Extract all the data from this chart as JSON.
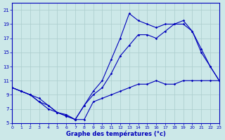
{
  "xlabel": "Graphe des températures (°c)",
  "background_color": "#cce8e8",
  "grid_color": "#aacccc",
  "line_color": "#0000bb",
  "xlim": [
    0,
    23
  ],
  "ylim": [
    5,
    22
  ],
  "xticks": [
    0,
    1,
    2,
    3,
    4,
    5,
    6,
    7,
    8,
    9,
    10,
    11,
    12,
    13,
    14,
    15,
    16,
    17,
    18,
    19,
    20,
    21,
    22,
    23
  ],
  "yticks": [
    5,
    7,
    9,
    11,
    13,
    15,
    17,
    19,
    21
  ],
  "curve_top": {
    "x": [
      0,
      1,
      2,
      3,
      4,
      5,
      6,
      7,
      8,
      9,
      10,
      11,
      12,
      13,
      14,
      15,
      16,
      17,
      18,
      19,
      20,
      21,
      22,
      23
    ],
    "y": [
      10,
      9.5,
      9,
      8.5,
      7.5,
      6.5,
      6.2,
      5.5,
      7.5,
      9.5,
      11,
      14,
      17,
      20.5,
      19.5,
      19,
      18.5,
      19,
      19,
      19.5,
      18,
      15.5,
      13,
      11
    ]
  },
  "curve_mid": {
    "x": [
      0,
      1,
      2,
      3,
      4,
      5,
      6,
      7,
      8,
      9,
      10,
      11,
      12,
      13,
      14,
      15,
      16,
      17,
      18,
      19,
      20,
      21,
      22,
      23
    ],
    "y": [
      10,
      9.5,
      9,
      8,
      7,
      6.5,
      6,
      5.5,
      7.5,
      9,
      10,
      12,
      14.5,
      16,
      17.5,
      17.5,
      17,
      18,
      19,
      19,
      18,
      15,
      13,
      11
    ]
  },
  "curve_bot": {
    "x": [
      0,
      1,
      2,
      3,
      4,
      5,
      6,
      7,
      8,
      9,
      10,
      11,
      12,
      13,
      14,
      15,
      16,
      17,
      18,
      19,
      20,
      21,
      22,
      23
    ],
    "y": [
      10,
      9.5,
      9,
      8,
      7.5,
      6.5,
      6,
      5.5,
      5.5,
      8,
      8.5,
      9,
      9.5,
      10,
      10.5,
      10.5,
      11,
      10.5,
      10.5,
      11,
      11,
      11,
      11,
      11
    ]
  }
}
